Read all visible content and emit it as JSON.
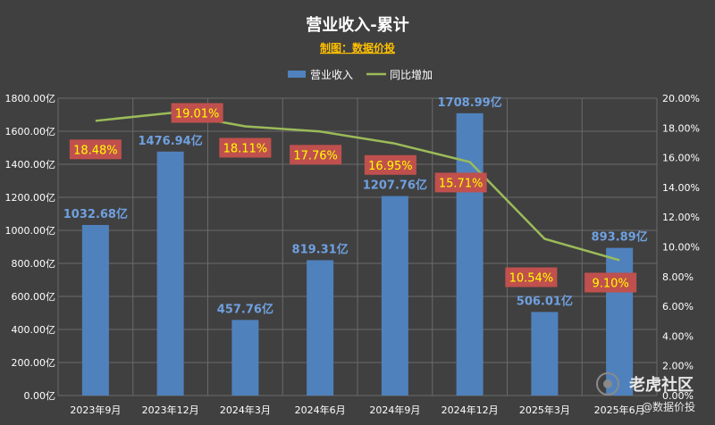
{
  "chart_data": {
    "type": "bar+line",
    "title": "营业收入-累计",
    "subtitle": "制图：数据价投",
    "categories": [
      "2023年9月",
      "2023年12月",
      "2024年3月",
      "2024年6月",
      "2024年9月",
      "2024年12月",
      "2025年3月",
      "2025年6月"
    ],
    "series": [
      {
        "name": "营业收入",
        "kind": "bar",
        "axis": "left",
        "color": "#4f81bd",
        "values": [
          1032.68,
          1476.94,
          457.76,
          819.31,
          1207.76,
          1708.99,
          506.01,
          893.89
        ],
        "labels": [
          "1032.68亿",
          "1476.94亿",
          "457.76亿",
          "819.31亿",
          "1207.76亿",
          "1708.99亿",
          "506.01亿",
          "893.89亿"
        ]
      },
      {
        "name": "同比增加",
        "kind": "line",
        "axis": "right",
        "color": "#9bbb59",
        "values": [
          18.48,
          19.01,
          18.11,
          17.76,
          16.95,
          15.71,
          10.54,
          9.1
        ],
        "labels": [
          "18.48%",
          "19.01%",
          "18.11%",
          "17.76%",
          "16.95%",
          "15.71%",
          "10.54%",
          "9.10%"
        ]
      }
    ],
    "y_left": {
      "min": 0,
      "max": 1800,
      "step": 200,
      "ticks": [
        "0.00亿",
        "200.00亿",
        "400.00亿",
        "600.00亿",
        "800.00亿",
        "1000.00亿",
        "1200.00亿",
        "1400.00亿",
        "1600.00亿",
        "1800.00亿"
      ]
    },
    "y_right": {
      "min": 0,
      "max": 20,
      "step": 2,
      "ticks": [
        "0.00%",
        "2.00%",
        "4.00%",
        "6.00%",
        "8.00%",
        "10.00%",
        "12.00%",
        "14.00%",
        "16.00%",
        "18.00%",
        "20.00%"
      ]
    },
    "grid": true,
    "legend_position": "top"
  },
  "colors": {
    "background": "#404040",
    "grid": "#6a6a6a",
    "title": "#ffffff",
    "subtitle": "#ffc000",
    "axis_text": "#ffffff",
    "bar_label": "#6fa0e0",
    "line_label_bg": "#c0504d",
    "line_label_text": "#ffff00"
  },
  "watermark": {
    "brand": "老虎社区",
    "author": "@数据价投",
    "icon": "tiger-community-logo-icon"
  }
}
